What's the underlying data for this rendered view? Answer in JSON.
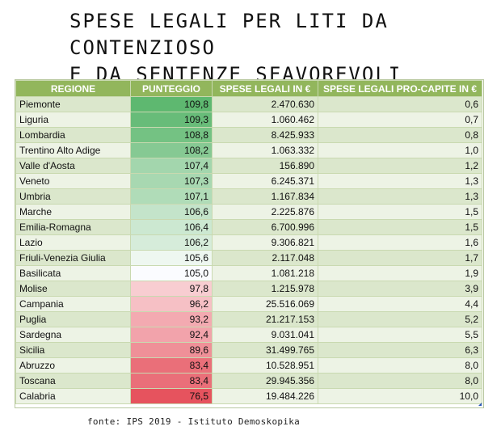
{
  "title": {
    "line1": "SPESE LEGALI PER LITI DA CONTENZIOSO",
    "line2": "E DA SENTENZE SFAVOREVOLI"
  },
  "table": {
    "headers": [
      "REGIONE",
      "PUNTEGGIO",
      "SPESE LEGALI IN €",
      "SPESE LEGALI PRO-CAPITE IN €"
    ],
    "rows": [
      {
        "regione": "Piemonte",
        "punteggio": "109,8",
        "spese": "2.470.630",
        "procapite": "0,6",
        "color": "#5eb870"
      },
      {
        "regione": "Liguria",
        "punteggio": "109,3",
        "spese": "1.060.462",
        "procapite": "0,7",
        "color": "#68bc79"
      },
      {
        "regione": "Lombardia",
        "punteggio": "108,8",
        "spese": "8.425.933",
        "procapite": "0,8",
        "color": "#74c283"
      },
      {
        "regione": "Trentino Alto Adige",
        "punteggio": "108,2",
        "spese": "1.063.332",
        "procapite": "1,0",
        "color": "#86c993"
      },
      {
        "regione": "Valle d'Aosta",
        "punteggio": "107,4",
        "spese": "156.890",
        "procapite": "1,2",
        "color": "#a3d6ad"
      },
      {
        "regione": "Veneto",
        "punteggio": "107,3",
        "spese": "6.245.371",
        "procapite": "1,3",
        "color": "#a8d8b1"
      },
      {
        "regione": "Umbria",
        "punteggio": "107,1",
        "spese": "1.167.834",
        "procapite": "1,3",
        "color": "#b0dcb8"
      },
      {
        "regione": "Marche",
        "punteggio": "106,6",
        "spese": "2.225.876",
        "procapite": "1,5",
        "color": "#c4e4ca"
      },
      {
        "regione": "Emilia-Romagna",
        "punteggio": "106,4",
        "spese": "6.700.996",
        "procapite": "1,5",
        "color": "#cce8d1"
      },
      {
        "regione": "Lazio",
        "punteggio": "106,2",
        "spese": "9.306.821",
        "procapite": "1,6",
        "color": "#d6ecda"
      },
      {
        "regione": "Friuli-Venezia Giulia",
        "punteggio": "105,6",
        "spese": "2.117.048",
        "procapite": "1,7",
        "color": "#eef7f0"
      },
      {
        "regione": "Basilicata",
        "punteggio": "105,0",
        "spese": "1.081.218",
        "procapite": "1,9",
        "color": "#fbfcff"
      },
      {
        "regione": "Molise",
        "punteggio": "97,8",
        "spese": "1.215.978",
        "procapite": "3,9",
        "color": "#f8cdd1"
      },
      {
        "regione": "Campania",
        "punteggio": "96,2",
        "spese": "25.516.069",
        "procapite": "4,4",
        "color": "#f6c0c5"
      },
      {
        "regione": "Puglia",
        "punteggio": "93,2",
        "spese": "21.217.153",
        "procapite": "5,2",
        "color": "#f3aab1"
      },
      {
        "regione": "Sardegna",
        "punteggio": "92,4",
        "spese": "9.031.041",
        "procapite": "5,5",
        "color": "#f2a3ab"
      },
      {
        "regione": "Sicilia",
        "punteggio": "89,6",
        "spese": "31.499.765",
        "procapite": "6,3",
        "color": "#ef9098"
      },
      {
        "regione": "Abruzzo",
        "punteggio": "83,4",
        "spese": "10.528.951",
        "procapite": "8,0",
        "color": "#ea6f79"
      },
      {
        "regione": "Toscana",
        "punteggio": "83,4",
        "spese": "29.945.356",
        "procapite": "8,0",
        "color": "#ea6f79"
      },
      {
        "regione": "Calabria",
        "punteggio": "76,5",
        "spese": "19.484.226",
        "procapite": "10,0",
        "color": "#e6535e"
      }
    ]
  },
  "source": "fonte: IPS 2019 - Istituto Demoskopika"
}
